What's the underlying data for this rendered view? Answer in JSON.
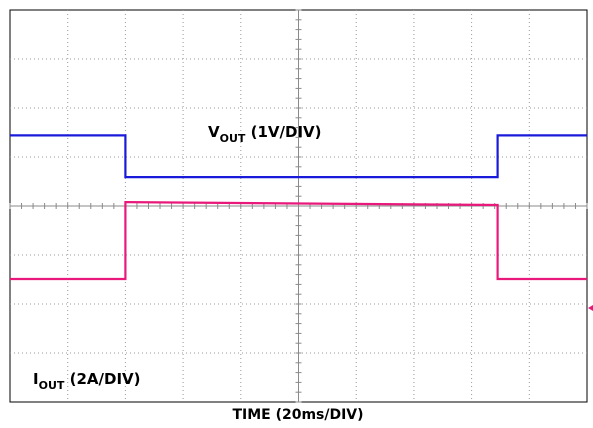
{
  "chart_data": {
    "type": "line",
    "title": "",
    "xlabel": "TIME (20ms/DIV)",
    "grid": true,
    "grid_divisions": {
      "x": 10,
      "y": 8
    },
    "x_range_div": [
      0,
      10
    ],
    "series": [
      {
        "name_main": "V",
        "name_sub": "OUT",
        "name_suffix": " (1V/DIV)",
        "color": "#1a1adb",
        "x_div": [
          0,
          2.0,
          2.0,
          8.45,
          8.45,
          10
        ],
        "y_div": [
          1.44,
          1.44,
          0.59,
          0.59,
          1.44,
          1.44
        ]
      },
      {
        "name_main": "I",
        "name_sub": "OUT",
        "name_suffix": " (2A/DIV)",
        "color": "#e8197a",
        "x_div": [
          0,
          2.0,
          2.0,
          8.45,
          8.45,
          10
        ],
        "y_div": [
          -1.49,
          -1.49,
          0.08,
          0.02,
          -1.49,
          -1.49
        ]
      }
    ]
  }
}
